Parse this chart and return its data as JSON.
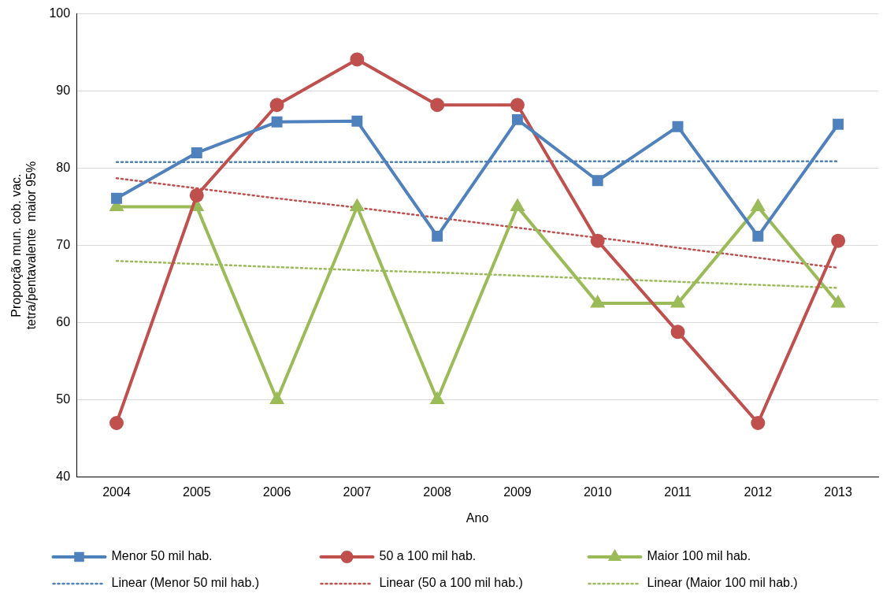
{
  "chart_data": {
    "type": "line",
    "xlabel": "Ano",
    "ylabel": "Proporção mun. cob. vac.\ntetra/pentavalente  maior 95%",
    "categories": [
      "2004",
      "2005",
      "2006",
      "2007",
      "2008",
      "2009",
      "2010",
      "2011",
      "2012",
      "2013"
    ],
    "ylim": [
      40,
      100
    ],
    "yticks": [
      40,
      50,
      60,
      70,
      80,
      90,
      100
    ],
    "grid": "y",
    "legend": "bottom",
    "series": [
      {
        "name": "Menor 50 mil hab.",
        "color": "#4f81bd",
        "marker": "square",
        "line_style": "solid",
        "values": [
          76.1,
          82,
          86,
          86.1,
          71.2,
          86.3,
          78.4,
          85.4,
          71.2,
          85.7
        ]
      },
      {
        "name": "50 a 100 mil hab.",
        "color": "#c0504d",
        "marker": "circle",
        "line_style": "solid",
        "values": [
          47,
          76.5,
          88.2,
          94.1,
          88.2,
          88.2,
          70.6,
          58.8,
          47,
          70.6
        ]
      },
      {
        "name": "Maior 100 mil hab.",
        "color": "#9bbb59",
        "marker": "triangle",
        "line_style": "solid",
        "values": [
          75,
          75,
          50,
          75,
          50,
          75,
          62.5,
          62.5,
          75,
          62.5
        ]
      },
      {
        "name": "Linear (Menor 50 mil hab.)",
        "color": "#4f81bd",
        "marker": "none",
        "line_style": "dotted",
        "values": [
          80.8,
          80.8,
          80.8,
          80.8,
          80.8,
          80.9,
          80.9,
          80.9,
          80.9,
          80.9
        ]
      },
      {
        "name": "Linear (50 a 100 mil hab.)",
        "color": "#c0504d",
        "marker": "none",
        "line_style": "dotted",
        "values": [
          78.7,
          77.4,
          76.1,
          74.9,
          73.6,
          72.3,
          71.0,
          69.7,
          68.4,
          67.1
        ]
      },
      {
        "name": "Linear (Maior 100 mil hab.)",
        "color": "#9bbb59",
        "marker": "none",
        "line_style": "dotted",
        "values": [
          68.0,
          67.6,
          67.2,
          66.8,
          66.5,
          66.1,
          65.7,
          65.3,
          64.9,
          64.5
        ]
      }
    ]
  }
}
